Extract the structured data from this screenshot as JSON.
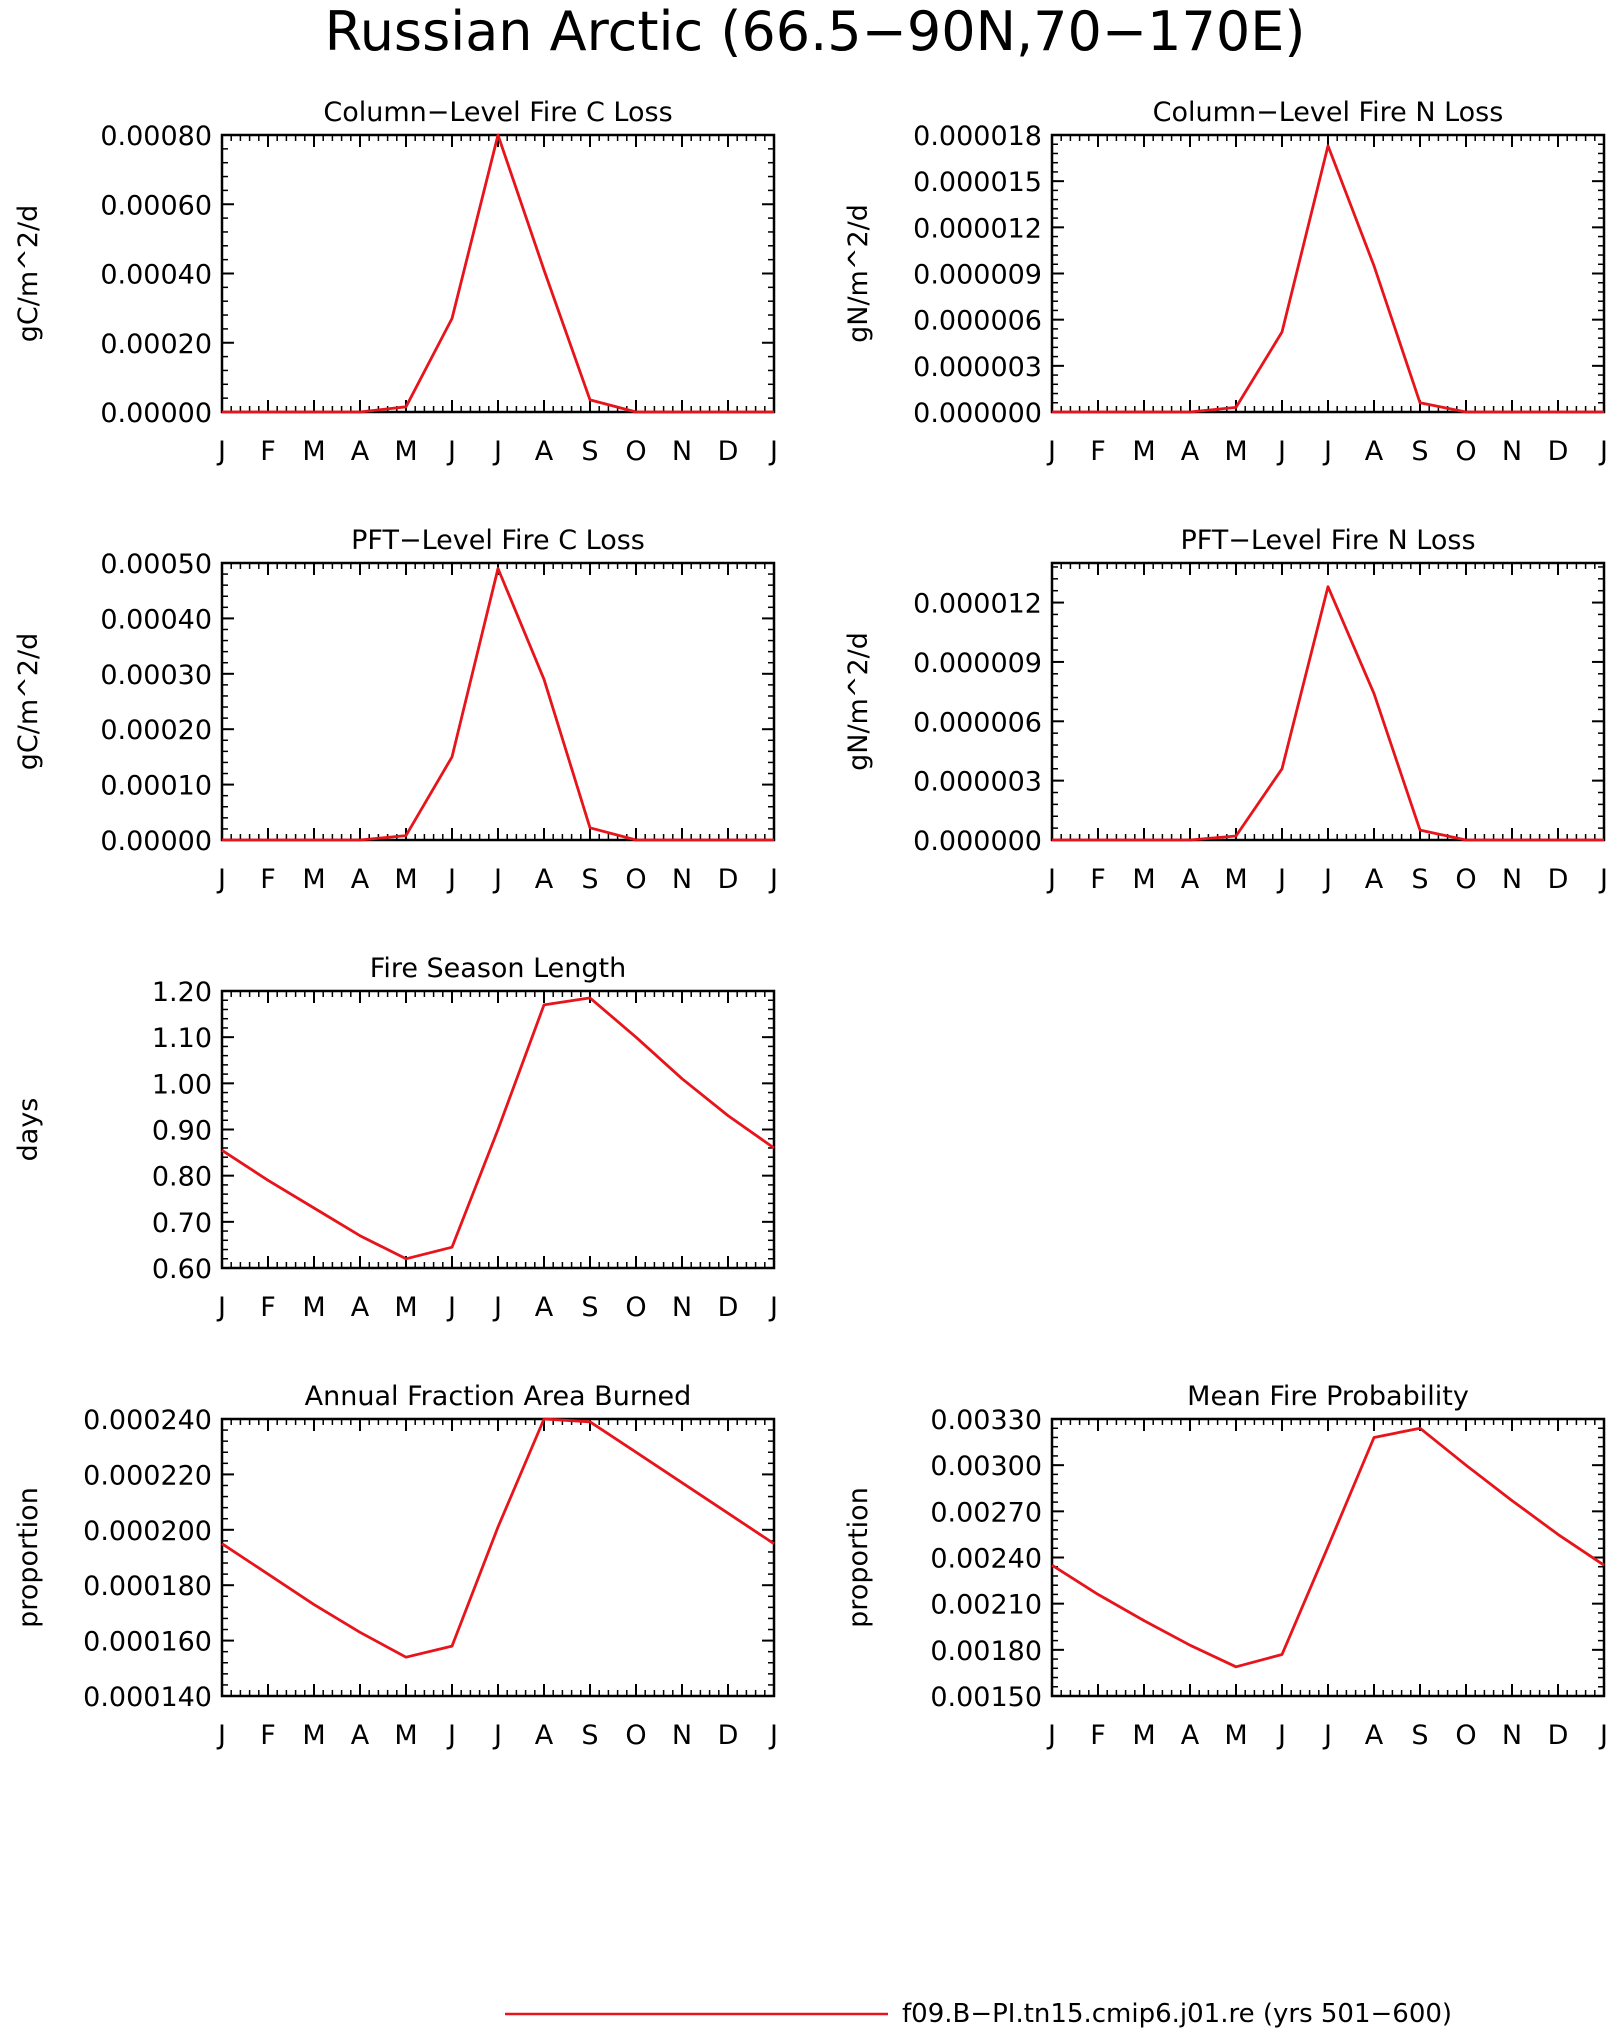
{
  "figure": {
    "title": "Russian Arctic (66.5−90N,70−170E)",
    "legend_label": "f09.B−PI.tn15.cmip6.j01.re (yrs 501−600)",
    "line_color": "#e8141b"
  },
  "chart_data": [
    {
      "type": "line",
      "title": "Column−Level Fire C Loss",
      "ylabel": "gC/m^2/d",
      "xlabel": "",
      "categories": [
        "J",
        "F",
        "M",
        "A",
        "M",
        "J",
        "J",
        "A",
        "S",
        "O",
        "N",
        "D",
        "J"
      ],
      "yticks": [
        "0.00000",
        "0.00020",
        "0.00040",
        "0.00060",
        "0.00080"
      ],
      "ylim": [
        0,
        0.0008
      ],
      "grid": false,
      "series": [
        {
          "values": [
            0,
            0,
            0,
            0,
            1.5e-05,
            0.00027,
            0.0008,
            0.00041,
            3.5e-05,
            0,
            0,
            0,
            0
          ]
        }
      ]
    },
    {
      "type": "line",
      "title": "Column−Level Fire N Loss",
      "ylabel": "gN/m^2/d",
      "xlabel": "",
      "categories": [
        "J",
        "F",
        "M",
        "A",
        "M",
        "J",
        "J",
        "A",
        "S",
        "O",
        "N",
        "D",
        "J"
      ],
      "yticks": [
        "0.000000",
        "0.000003",
        "0.000006",
        "0.000009",
        "0.000012",
        "0.000015",
        "0.000018"
      ],
      "ylim": [
        0,
        1.8e-05
      ],
      "grid": false,
      "series": [
        {
          "values": [
            0,
            0,
            0,
            0,
            3e-07,
            5.2e-06,
            1.73e-05,
            9.5e-06,
            6e-07,
            0,
            0,
            0,
            0
          ]
        }
      ]
    },
    {
      "type": "line",
      "title": "PFT−Level Fire C Loss",
      "ylabel": "gC/m^2/d",
      "xlabel": "",
      "categories": [
        "J",
        "F",
        "M",
        "A",
        "M",
        "J",
        "J",
        "A",
        "S",
        "O",
        "N",
        "D",
        "J"
      ],
      "yticks": [
        "0.00000",
        "0.00010",
        "0.00020",
        "0.00030",
        "0.00040",
        "0.00050"
      ],
      "ylim": [
        0,
        0.0005
      ],
      "grid": false,
      "series": [
        {
          "values": [
            0,
            0,
            0,
            0,
            8e-06,
            0.00015,
            0.00049,
            0.00029,
            2.2e-05,
            0,
            0,
            0,
            0
          ]
        }
      ]
    },
    {
      "type": "line",
      "title": "PFT−Level Fire N Loss",
      "ylabel": "gN/m^2/d",
      "xlabel": "",
      "categories": [
        "J",
        "F",
        "M",
        "A",
        "M",
        "J",
        "J",
        "A",
        "S",
        "O",
        "N",
        "D",
        "J"
      ],
      "yticks": [
        "0.000000",
        "0.000003",
        "0.000006",
        "0.000009",
        "0.000012"
      ],
      "ylim": [
        0,
        1.4e-05
      ],
      "grid": false,
      "series": [
        {
          "values": [
            0,
            0,
            0,
            0,
            2e-07,
            3.6e-06,
            1.28e-05,
            7.4e-06,
            5e-07,
            0,
            0,
            0,
            0
          ]
        }
      ]
    },
    {
      "type": "line",
      "title": "Fire Season Length",
      "ylabel": "days",
      "xlabel": "",
      "categories": [
        "J",
        "F",
        "M",
        "A",
        "M",
        "J",
        "J",
        "A",
        "S",
        "O",
        "N",
        "D",
        "J"
      ],
      "yticks": [
        "0.60",
        "0.70",
        "0.80",
        "0.90",
        "1.00",
        "1.10",
        "1.20"
      ],
      "ylim": [
        0.6,
        1.2
      ],
      "grid": false,
      "series": [
        {
          "values": [
            0.855,
            0.79,
            0.73,
            0.67,
            0.62,
            0.645,
            0.9,
            1.17,
            1.185,
            1.1,
            1.01,
            0.93,
            0.86
          ]
        }
      ]
    },
    {
      "type": "line",
      "title": "Annual Fraction Area Burned",
      "ylabel": "proportion",
      "xlabel": "",
      "categories": [
        "J",
        "F",
        "M",
        "A",
        "M",
        "J",
        "J",
        "A",
        "S",
        "O",
        "N",
        "D",
        "J"
      ],
      "yticks": [
        "0.000140",
        "0.000160",
        "0.000180",
        "0.000200",
        "0.000220",
        "0.000240"
      ],
      "ylim": [
        0.00014,
        0.00024
      ],
      "grid": false,
      "series": [
        {
          "values": [
            0.000195,
            0.000184,
            0.000173,
            0.000163,
            0.000154,
            0.000158,
            0.000201,
            0.00024,
            0.000239,
            0.000228,
            0.000217,
            0.000206,
            0.000195
          ]
        }
      ]
    },
    {
      "type": "line",
      "title": "Mean Fire Probability",
      "ylabel": "proportion",
      "xlabel": "",
      "categories": [
        "J",
        "F",
        "M",
        "A",
        "M",
        "J",
        "J",
        "A",
        "S",
        "O",
        "N",
        "D",
        "J"
      ],
      "yticks": [
        "0.00150",
        "0.00180",
        "0.00210",
        "0.00240",
        "0.00270",
        "0.00300",
        "0.00330"
      ],
      "ylim": [
        0.0015,
        0.0033
      ],
      "grid": false,
      "series": [
        {
          "values": [
            0.00235,
            0.00216,
            0.00199,
            0.00183,
            0.00169,
            0.00177,
            0.00247,
            0.00318,
            0.00324,
            0.003,
            0.00277,
            0.00255,
            0.00235
          ]
        }
      ]
    }
  ]
}
